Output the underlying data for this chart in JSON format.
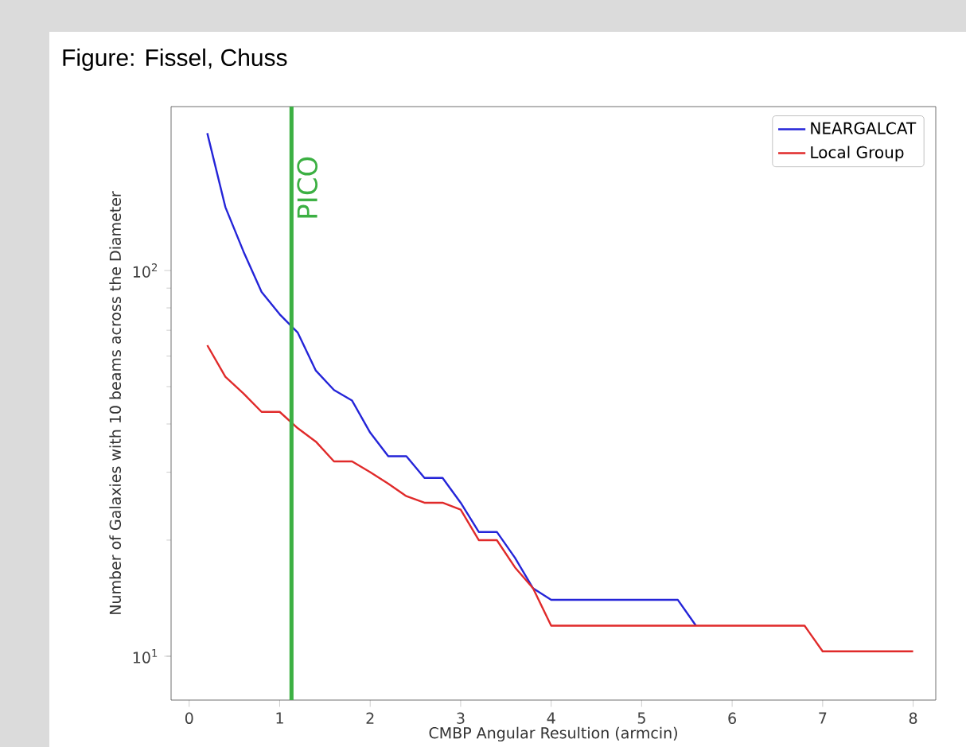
{
  "chart_data": {
    "type": "line",
    "annotations": [
      "Figure: Fissel, Chuss"
    ],
    "xlabel": "CMBP Angular Resultion (armcin)",
    "ylabel": "Number of Galaxies with 10 beams across the Diameter",
    "x": [
      0.2,
      0.4,
      0.6,
      0.8,
      1.0,
      1.2,
      1.4,
      1.6,
      1.8,
      2.0,
      2.2,
      2.4,
      2.6,
      2.8,
      3.0,
      3.2,
      3.4,
      3.6,
      3.8,
      4.0,
      4.2,
      4.4,
      4.6,
      4.8,
      5.0,
      5.2,
      5.4,
      5.6,
      5.8,
      6.0,
      6.2,
      6.4,
      6.6,
      6.8,
      7.0,
      7.2,
      7.4,
      7.6,
      7.8,
      8.0
    ],
    "series": [
      {
        "name": "NEARGALCAT",
        "color": "#2424d8",
        "values": [
          227,
          146,
          112,
          88,
          77,
          69,
          55,
          49,
          46,
          38,
          33,
          33,
          29,
          29,
          25,
          21,
          21,
          18,
          15,
          14,
          14,
          14,
          14,
          14,
          14,
          14,
          14,
          12,
          null,
          null,
          null,
          null,
          null,
          null,
          null,
          null,
          null,
          null,
          null,
          null
        ]
      },
      {
        "name": "Local Group",
        "color": "#e02a2a",
        "values": [
          64,
          53,
          48,
          43,
          43,
          39,
          36,
          32,
          32,
          30,
          28,
          26,
          25,
          25,
          24,
          20,
          20,
          17,
          15,
          12,
          12,
          12,
          12,
          12,
          12,
          12,
          12,
          12,
          12,
          12,
          12,
          12,
          12,
          12,
          10.3,
          10.3,
          10.3,
          10.3,
          10.3,
          10.3
        ]
      }
    ],
    "xlim": [
      -0.2,
      8.25
    ],
    "ylim": [
      7.7,
      266
    ],
    "log": "y",
    "xticks": [
      0,
      1,
      2,
      3,
      4,
      5,
      6,
      7,
      8
    ],
    "yticks": [
      {
        "value": 10,
        "label": "10$^{1}$"
      },
      {
        "value": 100,
        "label": "10$^{2}$"
      }
    ],
    "ref_lines": [
      {
        "axis": "x",
        "value": 1.13,
        "label": "PICO",
        "color": "#3cb043"
      }
    ],
    "legend": "top right",
    "marker": "none",
    "line_style": "solid"
  }
}
